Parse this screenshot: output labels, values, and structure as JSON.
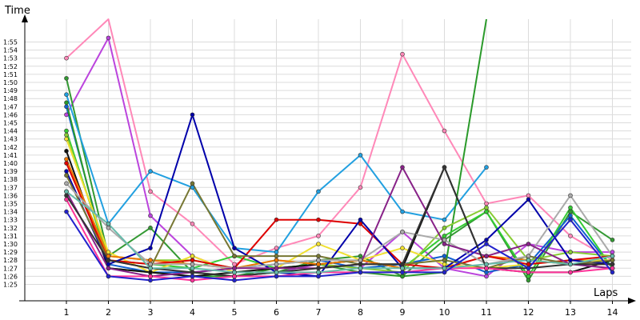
{
  "chart_data": {
    "type": "line",
    "ylabel": "Time",
    "xlabel": "Laps",
    "x": [
      1,
      2,
      3,
      4,
      5,
      6,
      7,
      8,
      9,
      10,
      11,
      12,
      13,
      14
    ],
    "y_ticks": [
      "1:25",
      "1:26",
      "1:27",
      "1:28",
      "1:29",
      "1:30",
      "1:31",
      "1:32",
      "1:33",
      "1:34",
      "1:35",
      "1:36",
      "1:37",
      "1:38",
      "1:39",
      "1:40",
      "1:41",
      "1:42",
      "1:43",
      "1:44",
      "1:45",
      "1:46",
      "1:47",
      "1:48",
      "1:49",
      "1:50",
      "1:51",
      "1:52",
      "1:53",
      "1:54",
      "1:55"
    ],
    "y_unit": "seconds",
    "ylim": [
      84,
      117
    ],
    "grid": true,
    "series": [
      {
        "color": "#ff88b8",
        "values": [
          113,
          118,
          96.5,
          92.5,
          87.5,
          89.5,
          91,
          97,
          113.5,
          104,
          95,
          96,
          91,
          88
        ]
      },
      {
        "color": "#bb44dd",
        "values": [
          106,
          115.5,
          93.5,
          88.5,
          86.5,
          86.5,
          87.5,
          87,
          91.5,
          87,
          86,
          90,
          89,
          89
        ]
      },
      {
        "color": "#339933",
        "values": [
          110.5,
          88.5,
          92,
          86.5,
          86,
          86.5,
          88,
          88.5,
          86,
          90.5,
          94,
          85.5,
          94,
          90.5
        ]
      },
      {
        "color": "#22a0e0",
        "values": [
          108.5,
          92.5,
          99,
          97,
          89.5,
          89,
          96.5,
          101,
          94,
          93,
          99.5,
          null,
          null,
          null
        ]
      },
      {
        "color": "#1060d0",
        "values": [
          107,
          87.5,
          86.5,
          86.5,
          87,
          87.5,
          88,
          87,
          87.5,
          88.5,
          86.5,
          87.5,
          93.5,
          87
        ]
      },
      {
        "color": "#2a9a2a",
        "values": [
          107.5,
          87,
          86.5,
          86,
          86,
          87,
          87.5,
          86.5,
          86,
          86.5,
          126,
          null,
          null,
          null
        ]
      },
      {
        "color": "#33cc33",
        "values": [
          104,
          88,
          87.5,
          87,
          88.5,
          87,
          87.5,
          88,
          87,
          91,
          94,
          86,
          94.5,
          87
        ]
      },
      {
        "color": "#88cc33",
        "values": [
          103.5,
          88.5,
          88,
          88,
          87,
          88,
          87.5,
          87,
          86.5,
          92,
          94.5,
          88,
          89,
          88.5
        ]
      },
      {
        "color": "#f0e030",
        "values": [
          103,
          89,
          86.5,
          88.5,
          86.5,
          87,
          90,
          88,
          89.5,
          87.5,
          87,
          87.5,
          88,
          88
        ]
      },
      {
        "color": "#111111",
        "values": [
          101.5,
          87,
          86.5,
          86,
          86.5,
          87,
          87.5,
          88,
          87,
          99.5,
          87,
          86.5,
          86.5,
          88
        ]
      },
      {
        "color": "#ee7700",
        "values": [
          100.5,
          88.5,
          88,
          87.5,
          87,
          88,
          87.5,
          88,
          87,
          87,
          88.5,
          88,
          87.5,
          87.5
        ]
      },
      {
        "color": "#dd0000",
        "values": [
          100,
          88,
          87.5,
          88,
          87,
          93,
          93,
          92.5,
          87.5,
          87,
          88.5,
          87.5,
          88,
          88.5
        ]
      },
      {
        "color": "#0000aa",
        "values": [
          99,
          87.5,
          89.5,
          106,
          89.5,
          86.5,
          86,
          93,
          87,
          87,
          90.5,
          95.5,
          88,
          87.5
        ]
      },
      {
        "color": "#777733",
        "values": [
          98.5,
          88,
          87,
          97.5,
          88.5,
          88.5,
          88.5,
          87.5,
          87.5,
          88,
          87,
          88.5,
          87.5,
          88
        ]
      },
      {
        "color": "#aaaaaa",
        "values": [
          97.5,
          92,
          87.5,
          87.5,
          87,
          87.5,
          88,
          88,
          91.5,
          90.5,
          87.5,
          88.5,
          96,
          88.5
        ]
      },
      {
        "color": "#882288",
        "values": [
          96.5,
          87,
          86,
          86.5,
          87,
          87,
          87,
          87.5,
          99.5,
          90,
          88.5,
          90,
          87.5,
          87
        ]
      },
      {
        "color": "#333333",
        "values": [
          96,
          88,
          87,
          86.5,
          86,
          86.5,
          87,
          87.5,
          87.5,
          99.5,
          87,
          87,
          87.5,
          87.5
        ]
      },
      {
        "color": "#ff3399",
        "values": [
          95.5,
          86,
          86,
          85.5,
          86,
          86,
          86.5,
          86.5,
          86.5,
          87,
          87,
          86.5,
          86.5,
          87
        ]
      },
      {
        "color": "#66bbaa",
        "values": [
          96.5,
          92.5,
          87,
          87,
          86.5,
          86.5,
          86.5,
          87,
          87,
          87,
          87.5,
          88,
          87.5,
          88.5
        ]
      },
      {
        "color": "#2222cc",
        "values": [
          94,
          86,
          85.5,
          86,
          85.5,
          86,
          86,
          86.5,
          86.5,
          86.5,
          90,
          87,
          93,
          86.5
        ]
      }
    ]
  }
}
